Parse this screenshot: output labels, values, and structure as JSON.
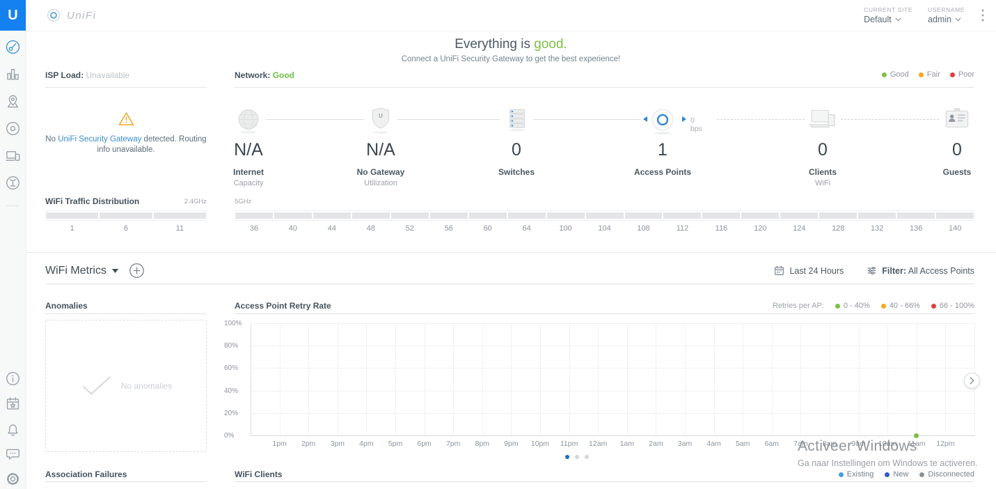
{
  "brand": {
    "tile_letter": "U",
    "wordmark": "UniFi"
  },
  "topbar": {
    "current_site": {
      "label": "CURRENT SITE",
      "value": "Default"
    },
    "user": {
      "label": "USERNAME",
      "value": "admin"
    }
  },
  "sidebar": {
    "top": [
      {
        "id": "dashboard",
        "active": true
      },
      {
        "id": "statistics",
        "active": false
      },
      {
        "id": "map",
        "active": false
      },
      {
        "id": "devices",
        "active": false
      },
      {
        "id": "clients",
        "active": false
      },
      {
        "id": "insights",
        "active": false
      }
    ],
    "bottom": [
      {
        "id": "info"
      },
      {
        "id": "events"
      },
      {
        "id": "alerts"
      },
      {
        "id": "chat"
      },
      {
        "id": "settings"
      }
    ]
  },
  "hero": {
    "title_prefix": "Everything is",
    "title_highlight": "good.",
    "highlight_color": "#7cc142",
    "subtitle": "Connect a UniFi Security Gateway to get the best experience!"
  },
  "status": {
    "isp": {
      "label": "ISP Load:",
      "value": "Unavailable"
    },
    "network": {
      "label": "Network:",
      "value": "Good",
      "value_color": "#6ebe44"
    },
    "legend": [
      {
        "label": "Good",
        "color": "#7cc142"
      },
      {
        "label": "Fair",
        "color": "#f5a623"
      },
      {
        "label": "Poor",
        "color": "#e03e3e"
      }
    ]
  },
  "gateway_notice": {
    "before": "No",
    "link": "UniFi Security Gateway",
    "after": "detected. Routing info unavailable."
  },
  "chain": {
    "throughput": "0 bps",
    "nodes": [
      {
        "id": "internet",
        "icon": "globe-icon",
        "value": "N/A",
        "label": "Internet",
        "sublabel": "Capacity"
      },
      {
        "id": "gateway",
        "icon": "shield-icon",
        "value": "N/A",
        "label": "No Gateway",
        "sublabel": "Utilization"
      },
      {
        "id": "switches",
        "icon": "switch-icon",
        "value": "0",
        "label": "Switches",
        "sublabel": ""
      },
      {
        "id": "access-points",
        "icon": "ap-icon",
        "value": "1",
        "label": "Access Points",
        "sublabel": ""
      },
      {
        "id": "clients",
        "icon": "laptop-icon",
        "value": "0",
        "label": "Clients",
        "sublabel": "WiFi"
      },
      {
        "id": "guests",
        "icon": "badge-icon",
        "value": "0",
        "label": "Guests",
        "sublabel": ""
      }
    ]
  },
  "traffic": {
    "title": "WiFi Traffic Distribution",
    "bands": [
      {
        "label": "2.4GHz",
        "channels": [
          "1",
          "6",
          "11"
        ]
      },
      {
        "label": "5GHz",
        "channels": [
          "36",
          "40",
          "44",
          "48",
          "52",
          "56",
          "60",
          "64",
          "100",
          "104",
          "108",
          "112",
          "116",
          "120",
          "124",
          "128",
          "132",
          "136",
          "140"
        ]
      }
    ]
  },
  "metrics": {
    "title": "WiFi Metrics",
    "time_range": "Last 24 Hours",
    "filter_label": "Filter:",
    "filter_value": "All Access Points"
  },
  "anomalies": {
    "title": "Anomalies",
    "empty": "No anomalies"
  },
  "chart_data": {
    "type": "line",
    "title": "Access Point Retry Rate",
    "legend_label": "Retries per AP:",
    "legend": [
      {
        "label": "0 - 40%",
        "color": "#7cc142"
      },
      {
        "label": "40 - 66%",
        "color": "#f5a623"
      },
      {
        "label": "66 - 100%",
        "color": "#e03e3e"
      }
    ],
    "y_ticks": [
      "100%",
      "80%",
      "60%",
      "40%",
      "20%",
      "0%"
    ],
    "ylim": [
      0,
      100
    ],
    "x_ticks": [
      "1pm",
      "2pm",
      "3pm",
      "4pm",
      "5pm",
      "6pm",
      "7pm",
      "8pm",
      "9pm",
      "10pm",
      "11pm",
      "12am",
      "1am",
      "2am",
      "3am",
      "4am",
      "5am",
      "6am",
      "7am",
      "8am",
      "9am",
      "10am",
      "11am",
      "12pm"
    ],
    "grid": true,
    "series": [
      {
        "name": "AP retry rate",
        "color": "#7cc142",
        "points": [
          {
            "x": "11am",
            "y": 0
          }
        ]
      }
    ],
    "pagination": {
      "count": 3,
      "active": 0
    }
  },
  "bottom": {
    "association_failures": "Association Failures",
    "wifi_clients": "WiFi Clients",
    "clients_legend": [
      {
        "label": "Existing",
        "color": "#4a9fd8"
      },
      {
        "label": "New",
        "color": "#2e5bd7"
      },
      {
        "label": "Disconnected",
        "color": "#8a9299"
      }
    ]
  },
  "watermark": {
    "line1": "Activeer Windows",
    "line2": "Ga naar Instellingen om Windows te activeren."
  }
}
